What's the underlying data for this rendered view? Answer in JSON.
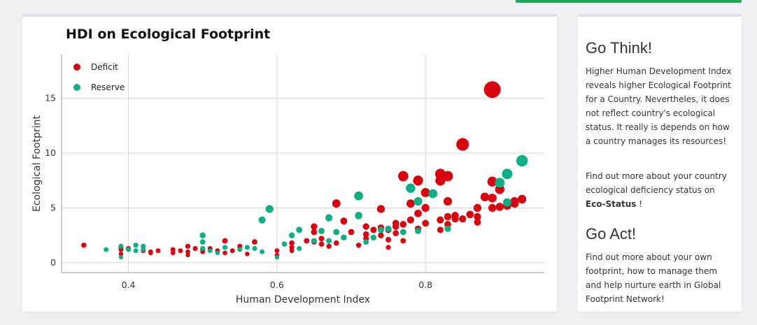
{
  "chart_data": {
    "type": "scatter",
    "title": "HDI on Ecological Footprint",
    "xlabel": "Human Development Index",
    "ylabel": "Ecological Footprint",
    "xlim": [
      0.31,
      0.96
    ],
    "ylim": [
      -0.9,
      19
    ],
    "xticks": [
      0.4,
      0.6,
      0.8
    ],
    "yticks": [
      0,
      5,
      10,
      15
    ],
    "grid": true,
    "legend_position": "top-left",
    "size_encoding": "marker size grows with Ecological Footprint",
    "series": [
      {
        "name": "Deficit",
        "color": "#d7040f",
        "points": [
          [
            0.34,
            1.6
          ],
          [
            0.39,
            1.2
          ],
          [
            0.39,
            1.4
          ],
          [
            0.39,
            0.8
          ],
          [
            0.4,
            1.3
          ],
          [
            0.42,
            1.1
          ],
          [
            0.43,
            1.0
          ],
          [
            0.43,
            0.9
          ],
          [
            0.44,
            1.1
          ],
          [
            0.46,
            1.2
          ],
          [
            0.46,
            0.9
          ],
          [
            0.47,
            1.1
          ],
          [
            0.48,
            1.5
          ],
          [
            0.48,
            1.0
          ],
          [
            0.48,
            0.7
          ],
          [
            0.49,
            1.3
          ],
          [
            0.5,
            1.2
          ],
          [
            0.5,
            1.0
          ],
          [
            0.51,
            1.3
          ],
          [
            0.52,
            1.1
          ],
          [
            0.53,
            2.0
          ],
          [
            0.53,
            0.9
          ],
          [
            0.54,
            1.1
          ],
          [
            0.55,
            1.5
          ],
          [
            0.56,
            0.8
          ],
          [
            0.57,
            1.9
          ],
          [
            0.58,
            1.0
          ],
          [
            0.6,
            1.1
          ],
          [
            0.6,
            0.7
          ],
          [
            0.62,
            1.8
          ],
          [
            0.62,
            1.4
          ],
          [
            0.62,
            1.1
          ],
          [
            0.64,
            2.0
          ],
          [
            0.65,
            2.8
          ],
          [
            0.65,
            1.9
          ],
          [
            0.65,
            3.3
          ],
          [
            0.66,
            1.7
          ],
          [
            0.66,
            2.2
          ],
          [
            0.67,
            1.5
          ],
          [
            0.68,
            1.8
          ],
          [
            0.68,
            5.4
          ],
          [
            0.69,
            3.8
          ],
          [
            0.69,
            2.3
          ],
          [
            0.7,
            2.8
          ],
          [
            0.71,
            1.6
          ],
          [
            0.72,
            3.3
          ],
          [
            0.72,
            2.6
          ],
          [
            0.72,
            2.2
          ],
          [
            0.72,
            1.9
          ],
          [
            0.73,
            3.0
          ],
          [
            0.73,
            2.3
          ],
          [
            0.74,
            3.2
          ],
          [
            0.74,
            2.5
          ],
          [
            0.74,
            4.9
          ],
          [
            0.75,
            3.0
          ],
          [
            0.75,
            2.1
          ],
          [
            0.75,
            1.4
          ],
          [
            0.76,
            3.6
          ],
          [
            0.76,
            3.3
          ],
          [
            0.76,
            2.7
          ],
          [
            0.77,
            7.9
          ],
          [
            0.77,
            3.5
          ],
          [
            0.77,
            2.0
          ],
          [
            0.78,
            5.4
          ],
          [
            0.78,
            3.9
          ],
          [
            0.79,
            7.5
          ],
          [
            0.79,
            4.5
          ],
          [
            0.79,
            3.1
          ],
          [
            0.8,
            6.4
          ],
          [
            0.8,
            5.0
          ],
          [
            0.8,
            3.6
          ],
          [
            0.82,
            8.1
          ],
          [
            0.82,
            7.5
          ],
          [
            0.82,
            3.9
          ],
          [
            0.82,
            3.0
          ],
          [
            0.83,
            7.9
          ],
          [
            0.83,
            5.6
          ],
          [
            0.83,
            4.2
          ],
          [
            0.83,
            3.5
          ],
          [
            0.84,
            4.0
          ],
          [
            0.84,
            4.3
          ],
          [
            0.85,
            10.8
          ],
          [
            0.85,
            4.0
          ],
          [
            0.86,
            4.4
          ],
          [
            0.87,
            4.2
          ],
          [
            0.87,
            3.7
          ],
          [
            0.87,
            5.0
          ],
          [
            0.88,
            6.0
          ],
          [
            0.89,
            15.8
          ],
          [
            0.89,
            7.4
          ],
          [
            0.89,
            5.9
          ],
          [
            0.89,
            5.0
          ],
          [
            0.9,
            6.7
          ],
          [
            0.9,
            5.1
          ],
          [
            0.91,
            5.2
          ],
          [
            0.92,
            5.6
          ],
          [
            0.92,
            5.4
          ],
          [
            0.93,
            5.8
          ]
        ]
      },
      {
        "name": "Reserve",
        "color": "#0fae85",
        "points": [
          [
            0.37,
            1.2
          ],
          [
            0.39,
            1.5
          ],
          [
            0.39,
            0.5
          ],
          [
            0.4,
            1.2
          ],
          [
            0.41,
            1.6
          ],
          [
            0.41,
            1.1
          ],
          [
            0.42,
            1.5
          ],
          [
            0.42,
            1.2
          ],
          [
            0.5,
            2.5
          ],
          [
            0.5,
            1.9
          ],
          [
            0.5,
            1.3
          ],
          [
            0.51,
            1.1
          ],
          [
            0.52,
            0.9
          ],
          [
            0.53,
            1.4
          ],
          [
            0.55,
            1.2
          ],
          [
            0.56,
            1.4
          ],
          [
            0.57,
            1.3
          ],
          [
            0.58,
            3.9
          ],
          [
            0.58,
            1.0
          ],
          [
            0.59,
            4.9
          ],
          [
            0.6,
            0.5
          ],
          [
            0.61,
            1.7
          ],
          [
            0.62,
            2.5
          ],
          [
            0.63,
            3.0
          ],
          [
            0.63,
            1.3
          ],
          [
            0.65,
            2.0
          ],
          [
            0.66,
            2.9
          ],
          [
            0.67,
            4.1
          ],
          [
            0.67,
            2.0
          ],
          [
            0.68,
            2.8
          ],
          [
            0.69,
            2.3
          ],
          [
            0.71,
            6.1
          ],
          [
            0.71,
            4.3
          ],
          [
            0.72,
            1.9
          ],
          [
            0.73,
            2.3
          ],
          [
            0.74,
            3.0
          ],
          [
            0.75,
            3.1
          ],
          [
            0.77,
            2.8
          ],
          [
            0.78,
            6.8
          ],
          [
            0.79,
            5.6
          ],
          [
            0.79,
            2.9
          ],
          [
            0.81,
            6.3
          ],
          [
            0.83,
            3.1
          ],
          [
            0.9,
            7.3
          ],
          [
            0.91,
            8.1
          ],
          [
            0.91,
            5.5
          ],
          [
            0.93,
            9.3
          ]
        ]
      }
    ]
  },
  "sidebar": {
    "think_heading": "Go Think!",
    "think_text": "Higher Human Development Index reveals higher Ecological Footprint for a Country. Nevertheles, it does not reflect country's ecological status. It really is depends on how a country manages its resources!",
    "find_out_prefix": "Find out more about your country ecological deficiency status on ",
    "find_out_link": "Eco-Status",
    "find_out_suffix": " !",
    "act_heading": "Go Act!",
    "act_text": "Find out more about your own footprint, how to manage them and help nurture earth in Global Footprint Network!"
  }
}
